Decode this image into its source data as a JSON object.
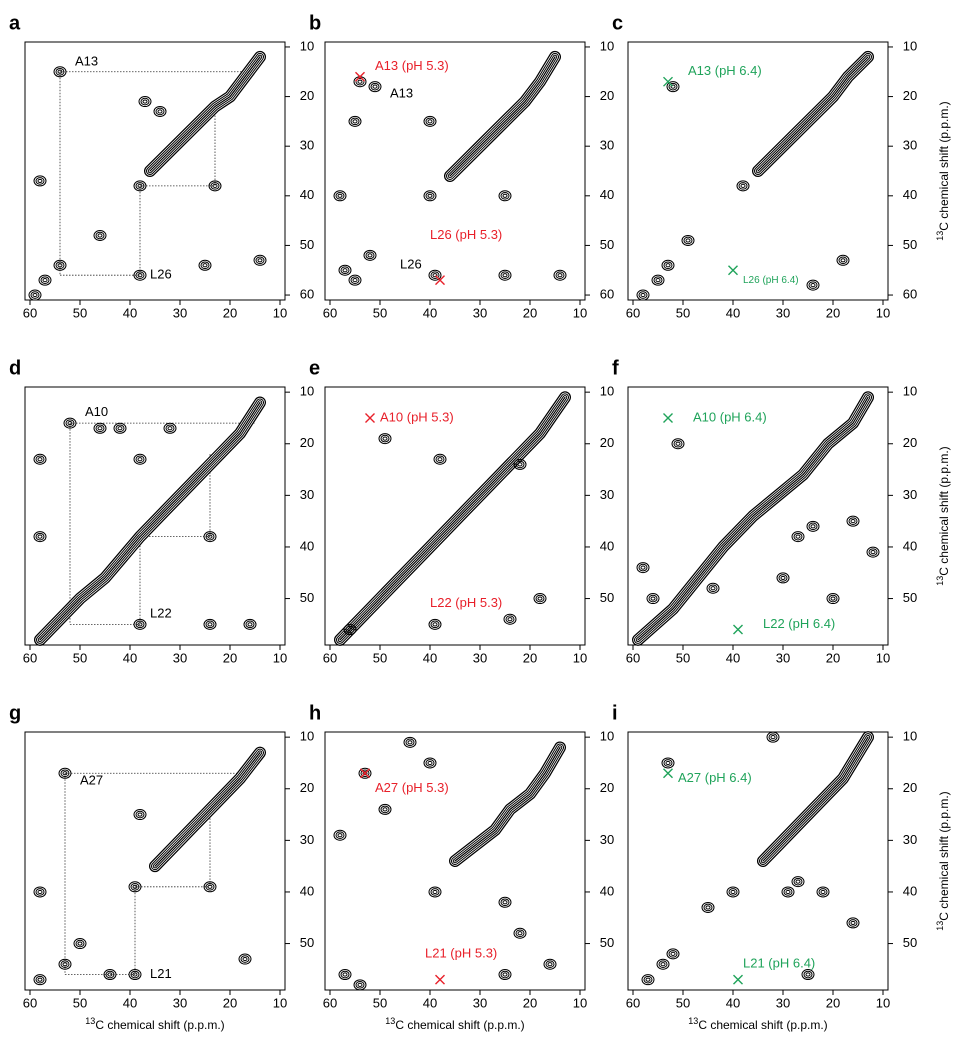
{
  "chart_data": [
    {
      "type": "contour",
      "label": "a",
      "xlim": [
        61,
        9
      ],
      "ylim": [
        9,
        61
      ],
      "xticks": [
        60,
        50,
        40,
        30,
        20,
        10
      ],
      "yticks": [
        10,
        20,
        30,
        40,
        50,
        60
      ],
      "ridge": [
        [
          36,
          35
        ],
        [
          33,
          32
        ],
        [
          30,
          29
        ],
        [
          27,
          26
        ],
        [
          23,
          22
        ],
        [
          20,
          20
        ],
        [
          17,
          16
        ],
        [
          14,
          12
        ]
      ],
      "peaks": [
        [
          54,
          15
        ],
        [
          38,
          38
        ],
        [
          23,
          38
        ],
        [
          54,
          54
        ],
        [
          57,
          57
        ],
        [
          38,
          56
        ],
        [
          14,
          53
        ],
        [
          59,
          60
        ],
        [
          58,
          37
        ],
        [
          37,
          21
        ],
        [
          34,
          23
        ],
        [
          46,
          48
        ],
        [
          25,
          54
        ]
      ],
      "lines": [
        [
          54,
          15,
          15,
          15
        ],
        [
          54,
          15,
          54,
          56
        ],
        [
          54,
          56,
          38,
          56
        ],
        [
          38,
          38,
          38,
          56
        ],
        [
          38,
          38,
          23,
          38
        ],
        [
          23,
          22,
          23,
          38
        ]
      ],
      "annotations": [
        {
          "text": "A13",
          "x": 51,
          "y": 13,
          "color": "#000000"
        },
        {
          "text": "L26",
          "x": 36,
          "y": 56,
          "color": "#000000"
        }
      ],
      "markers": []
    },
    {
      "type": "contour",
      "label": "b",
      "xlim": [
        61,
        9
      ],
      "ylim": [
        9,
        61
      ],
      "xticks": [
        60,
        50,
        40,
        30,
        20,
        10
      ],
      "yticks": [
        10,
        20,
        30,
        40,
        50,
        60
      ],
      "ridge": [
        [
          36,
          36
        ],
        [
          33,
          33
        ],
        [
          30,
          30
        ],
        [
          27,
          27
        ],
        [
          24,
          24
        ],
        [
          21,
          21
        ],
        [
          18,
          17
        ],
        [
          15,
          12
        ]
      ],
      "peaks": [
        [
          54,
          17
        ],
        [
          51,
          18
        ],
        [
          40,
          25
        ],
        [
          55,
          25
        ],
        [
          58,
          40
        ],
        [
          40,
          40
        ],
        [
          55,
          57
        ],
        [
          57,
          55
        ],
        [
          39,
          56
        ],
        [
          25,
          56
        ],
        [
          14,
          56
        ],
        [
          25,
          40
        ],
        [
          52,
          52
        ]
      ],
      "lines": [],
      "annotations": [
        {
          "text": "A13 (pH 5.3)",
          "x": 51,
          "y": 14,
          "color": "#e8202a"
        },
        {
          "text": "A13",
          "x": 48,
          "y": 19.5,
          "color": "#000000"
        },
        {
          "text": "L26 (pH 5.3)",
          "x": 40,
          "y": 48,
          "color": "#e8202a"
        },
        {
          "text": "L26",
          "x": 46,
          "y": 54,
          "color": "#000000"
        }
      ],
      "markers": [
        {
          "x": 54,
          "y": 16,
          "color": "#e8202a"
        },
        {
          "x": 38,
          "y": 57,
          "color": "#e8202a"
        }
      ]
    },
    {
      "type": "contour",
      "label": "c",
      "xlim": [
        61,
        9
      ],
      "ylim": [
        9,
        61
      ],
      "xticks": [
        60,
        50,
        40,
        30,
        20,
        10
      ],
      "yticks": [
        10,
        20,
        30,
        40,
        50,
        60
      ],
      "ylabel": {
        "sup": "13",
        "text": "C chemical shift (p.p.m.)"
      },
      "ridge": [
        [
          35,
          35
        ],
        [
          32,
          32
        ],
        [
          29,
          29
        ],
        [
          26,
          26
        ],
        [
          23,
          23
        ],
        [
          20,
          20
        ],
        [
          17,
          16
        ],
        [
          13,
          12
        ]
      ],
      "peaks": [
        [
          52,
          18
        ],
        [
          38,
          38
        ],
        [
          55,
          57
        ],
        [
          53,
          54
        ],
        [
          58,
          60
        ],
        [
          18,
          53
        ],
        [
          24,
          58
        ],
        [
          49,
          49
        ]
      ],
      "lines": [],
      "annotations": [
        {
          "text": "A13 (pH 6.4)",
          "x": 49,
          "y": 15,
          "color": "#1fa35a"
        },
        {
          "text": "L26 (pH 6.4)",
          "x": 38,
          "y": 57,
          "color": "#1fa35a",
          "small": true
        }
      ],
      "markers": [
        {
          "x": 53,
          "y": 17,
          "color": "#1fa35a"
        },
        {
          "x": 40,
          "y": 55,
          "color": "#1fa35a"
        }
      ]
    },
    {
      "type": "contour",
      "label": "d",
      "xlim": [
        61,
        9
      ],
      "ylim": [
        9,
        59
      ],
      "xticks": [
        60,
        50,
        40,
        30,
        20,
        10
      ],
      "yticks": [
        10,
        20,
        30,
        40,
        50
      ],
      "ridge": [
        [
          58,
          58
        ],
        [
          50,
          50
        ],
        [
          45,
          46
        ],
        [
          38,
          38
        ],
        [
          33,
          33
        ],
        [
          28,
          28
        ],
        [
          23,
          23
        ],
        [
          18,
          18
        ],
        [
          14,
          12
        ]
      ],
      "peaks": [
        [
          52,
          16
        ],
        [
          58,
          23
        ],
        [
          58,
          38
        ],
        [
          38,
          23
        ],
        [
          24,
          38
        ],
        [
          38,
          55
        ],
        [
          24,
          55
        ],
        [
          16,
          55
        ],
        [
          32,
          17
        ],
        [
          42,
          17
        ],
        [
          46,
          17
        ]
      ],
      "lines": [
        [
          52,
          16,
          15,
          16
        ],
        [
          52,
          16,
          52,
          55
        ],
        [
          52,
          55,
          38,
          55
        ],
        [
          38,
          38,
          38,
          55
        ],
        [
          38,
          38,
          24,
          38
        ],
        [
          24,
          22,
          24,
          38
        ]
      ],
      "annotations": [
        {
          "text": "A10",
          "x": 49,
          "y": 14,
          "color": "#000000"
        },
        {
          "text": "L22",
          "x": 36,
          "y": 53,
          "color": "#000000"
        }
      ],
      "markers": []
    },
    {
      "type": "contour",
      "label": "e",
      "xlim": [
        61,
        9
      ],
      "ylim": [
        9,
        59
      ],
      "xticks": [
        60,
        50,
        40,
        30,
        20,
        10
      ],
      "yticks": [
        10,
        20,
        30,
        40,
        50
      ],
      "ridge": [
        [
          58,
          58
        ],
        [
          52,
          52
        ],
        [
          47,
          47
        ],
        [
          38,
          38
        ],
        [
          33,
          33
        ],
        [
          28,
          28
        ],
        [
          23,
          23
        ],
        [
          18,
          18
        ],
        [
          13,
          11
        ]
      ],
      "peaks": [
        [
          49,
          19
        ],
        [
          38,
          23
        ],
        [
          22,
          24
        ],
        [
          24,
          54
        ],
        [
          18,
          50
        ],
        [
          39,
          55
        ],
        [
          56,
          56
        ]
      ],
      "lines": [],
      "annotations": [
        {
          "text": "A10 (pH 5.3)",
          "x": 50,
          "y": 15,
          "color": "#e8202a"
        },
        {
          "text": "L22 (pH 5.3)",
          "x": 40,
          "y": 51,
          "color": "#e8202a"
        }
      ],
      "markers": [
        {
          "x": 52,
          "y": 15,
          "color": "#e8202a"
        }
      ]
    },
    {
      "type": "contour",
      "label": "f",
      "xlim": [
        61,
        9
      ],
      "ylim": [
        9,
        59
      ],
      "xticks": [
        60,
        50,
        40,
        30,
        20,
        10
      ],
      "yticks": [
        10,
        20,
        30,
        40,
        50
      ],
      "ylabel": {
        "sup": "13",
        "text": "C chemical shift (p.p.m.)"
      },
      "ridge": [
        [
          59,
          58
        ],
        [
          52,
          52
        ],
        [
          42,
          40
        ],
        [
          36,
          34
        ],
        [
          31,
          30
        ],
        [
          26,
          26
        ],
        [
          21,
          20
        ],
        [
          16,
          16
        ],
        [
          13,
          11
        ]
      ],
      "peaks": [
        [
          51,
          20
        ],
        [
          27,
          38
        ],
        [
          24,
          36
        ],
        [
          16,
          35
        ],
        [
          12,
          41
        ],
        [
          20,
          50
        ],
        [
          30,
          46
        ],
        [
          44,
          48
        ],
        [
          58,
          44
        ],
        [
          56,
          50
        ]
      ],
      "lines": [],
      "annotations": [
        {
          "text": "A10 (pH 6.4)",
          "x": 48,
          "y": 15,
          "color": "#1fa35a"
        },
        {
          "text": "L22 (pH 6.4)",
          "x": 34,
          "y": 55,
          "color": "#1fa35a"
        }
      ],
      "markers": [
        {
          "x": 53,
          "y": 15,
          "color": "#1fa35a"
        },
        {
          "x": 39,
          "y": 56,
          "color": "#1fa35a"
        }
      ]
    },
    {
      "type": "contour",
      "label": "g",
      "xlim": [
        61,
        9
      ],
      "ylim": [
        9,
        59
      ],
      "xticks": [
        60,
        50,
        40,
        30,
        20,
        10
      ],
      "yticks": [
        10,
        20,
        30,
        40,
        50
      ],
      "xlabel": {
        "sup": "13",
        "text": "C chemical shift (p.p.m.)"
      },
      "ridge": [
        [
          35,
          35
        ],
        [
          31,
          31
        ],
        [
          27,
          27
        ],
        [
          24,
          24
        ],
        [
          21,
          21
        ],
        [
          18,
          18
        ],
        [
          14,
          13
        ]
      ],
      "peaks": [
        [
          53,
          17
        ],
        [
          38,
          25
        ],
        [
          58,
          40
        ],
        [
          39,
          39
        ],
        [
          24,
          39
        ],
        [
          53,
          54
        ],
        [
          58,
          57
        ],
        [
          39,
          56
        ],
        [
          17,
          53
        ],
        [
          50,
          50
        ],
        [
          44,
          56
        ]
      ],
      "lines": [
        [
          53,
          17,
          17,
          17
        ],
        [
          53,
          17,
          53,
          56
        ],
        [
          53,
          56,
          39,
          56
        ],
        [
          39,
          39,
          39,
          56
        ],
        [
          39,
          39,
          24,
          39
        ],
        [
          24,
          24,
          24,
          39
        ]
      ],
      "annotations": [
        {
          "text": "A27",
          "x": 50,
          "y": 18.5,
          "color": "#000000"
        },
        {
          "text": "L21",
          "x": 36,
          "y": 56,
          "color": "#000000"
        }
      ],
      "markers": []
    },
    {
      "type": "contour",
      "label": "h",
      "xlim": [
        61,
        9
      ],
      "ylim": [
        9,
        59
      ],
      "xticks": [
        60,
        50,
        40,
        30,
        20,
        10
      ],
      "yticks": [
        10,
        20,
        30,
        40,
        50
      ],
      "xlabel": {
        "sup": "13",
        "text": "C chemical shift (p.p.m.)"
      },
      "ridge": [
        [
          35,
          34
        ],
        [
          31,
          31
        ],
        [
          27,
          28
        ],
        [
          24,
          24
        ],
        [
          20,
          21
        ],
        [
          17,
          17
        ],
        [
          14,
          12
        ]
      ],
      "peaks": [
        [
          53,
          17
        ],
        [
          39,
          40
        ],
        [
          58,
          29
        ],
        [
          49,
          24
        ],
        [
          25,
          42
        ],
        [
          54,
          58
        ],
        [
          57,
          56
        ],
        [
          16,
          54
        ],
        [
          25,
          56
        ],
        [
          44,
          11
        ],
        [
          40,
          15
        ],
        [
          22,
          48
        ]
      ],
      "lines": [],
      "annotations": [
        {
          "text": "A27 (pH 5.3)",
          "x": 51,
          "y": 20,
          "color": "#e8202a"
        },
        {
          "text": "L21 (pH 5.3)",
          "x": 41,
          "y": 52,
          "color": "#e8202a"
        }
      ],
      "markers": [
        {
          "x": 53,
          "y": 17,
          "color": "#e8202a"
        },
        {
          "x": 38,
          "y": 57,
          "color": "#e8202a"
        }
      ]
    },
    {
      "type": "contour",
      "label": "i",
      "xlim": [
        61,
        9
      ],
      "ylim": [
        9,
        59
      ],
      "xticks": [
        60,
        50,
        40,
        30,
        20,
        10
      ],
      "yticks": [
        10,
        20,
        30,
        40,
        50
      ],
      "xlabel": {
        "sup": "13",
        "text": "C chemical shift (p.p.m.)"
      },
      "ylabel": {
        "sup": "13",
        "text": "C chemical shift (p.p.m.)"
      },
      "ridge": [
        [
          34,
          34
        ],
        [
          31,
          31
        ],
        [
          28,
          28
        ],
        [
          25,
          25
        ],
        [
          21,
          21
        ],
        [
          18,
          18
        ],
        [
          13,
          10
        ]
      ],
      "peaks": [
        [
          53,
          15
        ],
        [
          40,
          40
        ],
        [
          29,
          40
        ],
        [
          27,
          38
        ],
        [
          22,
          40
        ],
        [
          16,
          46
        ],
        [
          45,
          43
        ],
        [
          54,
          54
        ],
        [
          57,
          57
        ],
        [
          52,
          52
        ],
        [
          25,
          56
        ],
        [
          32,
          10
        ]
      ],
      "lines": [],
      "annotations": [
        {
          "text": "A27 (pH 6.4)",
          "x": 51,
          "y": 18,
          "color": "#1fa35a"
        },
        {
          "text": "L21 (pH 6.4)",
          "x": 38,
          "y": 54,
          "color": "#1fa35a"
        }
      ],
      "markers": [
        {
          "x": 53,
          "y": 17,
          "color": "#1fa35a"
        },
        {
          "x": 39,
          "y": 57,
          "color": "#1fa35a"
        }
      ]
    }
  ]
}
